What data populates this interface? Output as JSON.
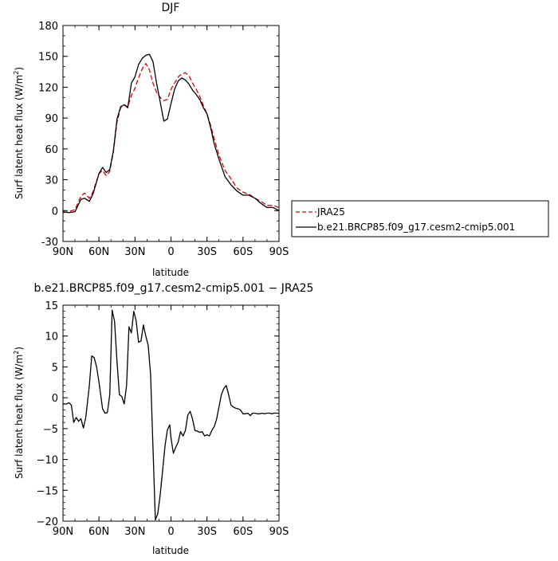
{
  "chart_data": [
    {
      "type": "line",
      "title": "DJF",
      "xlabel": "latitude",
      "ylabel": "Surf latent heat flux (W/m",
      "ylabel_sup": "2",
      "ylabel_close": ")",
      "xlim": [
        90,
        -90
      ],
      "ylim": [
        -30,
        180
      ],
      "x_ticks": [
        90,
        60,
        30,
        0,
        -30,
        -60,
        -90
      ],
      "x_tick_labels": [
        "90N",
        "60N",
        "30N",
        "0",
        "30S",
        "60S",
        "90S"
      ],
      "y_ticks": [
        -30,
        0,
        30,
        60,
        90,
        120,
        150,
        180
      ],
      "y_tick_labels": [
        "-30",
        "0",
        "30",
        "60",
        "90",
        "120",
        "150",
        "180"
      ],
      "legend": [
        "JRA25",
        "b.e21.BRCP85.f09_g17.cesm2-cmip5.001"
      ],
      "legend_placement": "right",
      "series": [
        {
          "name": "JRA25",
          "color": "#dd0000",
          "dash": true,
          "x": [
            90,
            85,
            80,
            75,
            72,
            68,
            65,
            60,
            57,
            54,
            51,
            48,
            45,
            42,
            39,
            36,
            33,
            30,
            27,
            24,
            21,
            18,
            15,
            12,
            9,
            6,
            3,
            0,
            -3,
            -6,
            -9,
            -12,
            -15,
            -18,
            -21,
            -24,
            -27,
            -30,
            -33,
            -36,
            -40,
            -45,
            -50,
            -55,
            -60,
            -65,
            -70,
            -75,
            -80,
            -85,
            -90
          ],
          "y": [
            -2,
            -1,
            1,
            14,
            17,
            12,
            18,
            36,
            39,
            34,
            38,
            57,
            86,
            100,
            103,
            101,
            112,
            119,
            129,
            138,
            143,
            137,
            124,
            115,
            110,
            107,
            108,
            118,
            124,
            130,
            133,
            134,
            131,
            124,
            118,
            111,
            102,
            94,
            83,
            70,
            54,
            39,
            31,
            22,
            18,
            16,
            12,
            9,
            5,
            5,
            3
          ]
        },
        {
          "name": "b.e21.BRCP85.f09_g17.cesm2-cmip5.001",
          "color": "#000000",
          "dash": false,
          "x": [
            90,
            85,
            80,
            75,
            72,
            68,
            65,
            60,
            57,
            54,
            51,
            48,
            45,
            42,
            39,
            36,
            33,
            30,
            27,
            24,
            21,
            18,
            15,
            12,
            9,
            6,
            3,
            0,
            -3,
            -6,
            -9,
            -12,
            -15,
            -18,
            -21,
            -24,
            -27,
            -30,
            -33,
            -36,
            -40,
            -45,
            -50,
            -55,
            -60,
            -65,
            -70,
            -75,
            -80,
            -85,
            -90
          ],
          "y": [
            -1,
            -2,
            -1,
            11,
            12,
            9,
            16,
            36,
            42,
            37,
            40,
            58,
            89,
            101,
            103,
            100,
            124,
            130,
            142,
            148,
            151,
            152,
            145,
            124,
            106,
            87,
            89,
            104,
            118,
            126,
            129,
            127,
            123,
            117,
            113,
            108,
            100,
            94,
            81,
            65,
            50,
            33,
            25,
            19,
            15,
            15,
            12,
            7,
            3,
            3,
            0
          ]
        }
      ]
    },
    {
      "type": "line",
      "title": "b.e21.BRCP85.f09_g17.cesm2-cmip5.001 − JRA25",
      "xlabel": "latitude",
      "ylabel": "Surf latent heat flux (W/m",
      "ylabel_sup": "2",
      "ylabel_close": ")",
      "xlim": [
        90,
        -90
      ],
      "ylim": [
        -20,
        15
      ],
      "x_ticks": [
        90,
        60,
        30,
        0,
        -30,
        -60,
        -90
      ],
      "x_tick_labels": [
        "90N",
        "60N",
        "30N",
        "0",
        "30S",
        "60S",
        "90S"
      ],
      "y_ticks": [
        -20,
        -15,
        -10,
        -5,
        0,
        5,
        10,
        15
      ],
      "y_tick_labels": [
        "−20",
        "−15",
        "−10",
        "−5",
        "0",
        "5",
        "10",
        "15"
      ],
      "series": [
        {
          "color": "#000000",
          "dash": false,
          "x": [
            90,
            87,
            85,
            83,
            81,
            79,
            77,
            75,
            73,
            71,
            68,
            66,
            64,
            62,
            60,
            57,
            55,
            53,
            51,
            49,
            47,
            45,
            43,
            41,
            39,
            37,
            35,
            33,
            31,
            29,
            27,
            25,
            23,
            21,
            19,
            17,
            15,
            13,
            11,
            9,
            7,
            5,
            3,
            1,
            0,
            -2,
            -4,
            -6,
            -8,
            -10,
            -12,
            -14,
            -16,
            -18,
            -20,
            -22,
            -24,
            -26,
            -28,
            -30,
            -32,
            -34,
            -36,
            -38,
            -40,
            -42,
            -44,
            -46,
            -48,
            -50,
            -52,
            -54,
            -56,
            -58,
            -60,
            -62,
            -64,
            -66,
            -68,
            -70,
            -72,
            -74,
            -76,
            -78,
            -80,
            -82,
            -84,
            -86,
            -88,
            -90
          ],
          "y": [
            -1,
            -1,
            -0.8,
            -1.2,
            -4,
            -3.2,
            -3.8,
            -3.4,
            -4.9,
            -3.2,
            2,
            6.8,
            6.5,
            5,
            2.5,
            -1.8,
            -2.5,
            -2.4,
            0.5,
            14.2,
            12.4,
            5.8,
            0.5,
            0.2,
            -1,
            2,
            11.5,
            10.5,
            14,
            12.5,
            9,
            9.2,
            11.8,
            10,
            8.5,
            3.8,
            -8,
            -19.8,
            -18.8,
            -15.8,
            -11.8,
            -7.8,
            -5.2,
            -4.4,
            -6.5,
            -9,
            -8,
            -7.2,
            -5.5,
            -6.2,
            -5.3,
            -2.8,
            -2.2,
            -3.5,
            -5.3,
            -5.4,
            -5.6,
            -5.5,
            -6.2,
            -6,
            -6.2,
            -5.3,
            -4.7,
            -3.5,
            -1.5,
            0.5,
            1.5,
            2,
            0.5,
            -1.2,
            -1.5,
            -1.7,
            -1.8,
            -2,
            -2.6,
            -2.6,
            -2.5,
            -2.9,
            -2.5,
            -2.5,
            -2.6,
            -2.6,
            -2.5,
            -2.6,
            -2.5,
            -2.5,
            -2.6,
            -2.5,
            -2.5,
            -2.5
          ]
        }
      ]
    }
  ]
}
